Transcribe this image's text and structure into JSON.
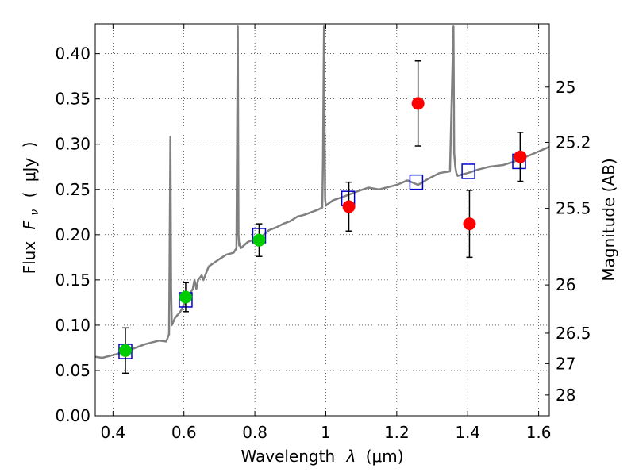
{
  "chart_data": {
    "type": "scatter",
    "xlabel_text": "Wavelength",
    "xlabel_symbol": "λ",
    "xlabel_unit": "(μm)",
    "ylabel_text": "Flux",
    "ylabel_symbol": "F",
    "ylabel_subscript": "ν",
    "ylabel_open": "(",
    "ylabel_unit": "μJy",
    "ylabel_close": ")",
    "y2label": "Magnitude (AB)",
    "xlim": [
      0.35,
      1.63
    ],
    "ylim": [
      0.0,
      0.433
    ],
    "grid": true,
    "x_ticks": [
      {
        "value": 0.4,
        "label": "0.4"
      },
      {
        "value": 0.6,
        "label": "0.6"
      },
      {
        "value": 0.8,
        "label": "0.8"
      },
      {
        "value": 1.0,
        "label": "1"
      },
      {
        "value": 1.2,
        "label": "1.2"
      },
      {
        "value": 1.4,
        "label": "1.4"
      },
      {
        "value": 1.6,
        "label": "1.6"
      }
    ],
    "y_ticks": [
      {
        "value": 0.0,
        "label": "0.00"
      },
      {
        "value": 0.05,
        "label": "0.05"
      },
      {
        "value": 0.1,
        "label": "0.10"
      },
      {
        "value": 0.15,
        "label": "0.15"
      },
      {
        "value": 0.2,
        "label": "0.20"
      },
      {
        "value": 0.25,
        "label": "0.25"
      },
      {
        "value": 0.3,
        "label": "0.30"
      },
      {
        "value": 0.35,
        "label": "0.35"
      },
      {
        "value": 0.4,
        "label": "0.40"
      }
    ],
    "y2_ticks": [
      {
        "value": 25,
        "label": "25"
      },
      {
        "value": 25.2,
        "label": "25.2"
      },
      {
        "value": 25.5,
        "label": "25.5"
      },
      {
        "value": 26,
        "label": "26"
      },
      {
        "value": 26.5,
        "label": "26.5"
      },
      {
        "value": 27,
        "label": "27"
      },
      {
        "value": 28,
        "label": "28"
      }
    ],
    "series": [
      {
        "kind": "spectrum",
        "color": "#808080",
        "x": [
          0.35,
          0.37,
          0.39,
          0.41,
          0.43,
          0.45,
          0.47,
          0.49,
          0.51,
          0.53,
          0.55,
          0.558,
          0.562,
          0.564,
          0.566,
          0.575,
          0.59,
          0.61,
          0.625,
          0.63,
          0.635,
          0.64,
          0.65,
          0.655,
          0.67,
          0.7,
          0.72,
          0.74,
          0.748,
          0.752,
          0.754,
          0.756,
          0.758,
          0.76,
          0.78,
          0.8,
          0.82,
          0.84,
          0.86,
          0.88,
          0.9,
          0.92,
          0.94,
          0.96,
          0.98,
          0.99,
          0.992,
          0.995,
          0.998,
          1.0,
          1.01,
          1.02,
          1.05,
          1.07,
          1.09,
          1.12,
          1.15,
          1.2,
          1.23,
          1.26,
          1.29,
          1.32,
          1.35,
          1.36,
          1.362,
          1.365,
          1.368,
          1.372,
          1.38,
          1.4,
          1.43,
          1.46,
          1.5,
          1.54,
          1.57,
          1.6,
          1.63
        ],
        "y": [
          0.065,
          0.064,
          0.066,
          0.068,
          0.071,
          0.073,
          0.076,
          0.079,
          0.081,
          0.083,
          0.082,
          0.09,
          0.308,
          0.14,
          0.1,
          0.108,
          0.115,
          0.13,
          0.14,
          0.15,
          0.14,
          0.15,
          0.155,
          0.15,
          0.165,
          0.173,
          0.178,
          0.18,
          0.185,
          0.43,
          0.2,
          0.188,
          0.19,
          0.185,
          0.192,
          0.195,
          0.198,
          0.205,
          0.208,
          0.212,
          0.215,
          0.22,
          0.222,
          0.225,
          0.228,
          0.23,
          0.28,
          0.43,
          0.24,
          0.232,
          0.235,
          0.238,
          0.242,
          0.245,
          0.248,
          0.252,
          0.25,
          0.255,
          0.26,
          0.255,
          0.262,
          0.268,
          0.27,
          0.43,
          0.29,
          0.275,
          0.268,
          0.265,
          0.266,
          0.268,
          0.272,
          0.275,
          0.277,
          0.282,
          0.287,
          0.292,
          0.297
        ]
      },
      {
        "kind": "model_squares",
        "color": "#0000cc",
        "points": [
          {
            "x": 0.435,
            "y": 0.071
          },
          {
            "x": 0.605,
            "y": 0.128
          },
          {
            "x": 0.812,
            "y": 0.199
          },
          {
            "x": 1.063,
            "y": 0.24
          },
          {
            "x": 1.255,
            "y": 0.258
          },
          {
            "x": 1.402,
            "y": 0.27
          },
          {
            "x": 1.545,
            "y": 0.281
          }
        ]
      },
      {
        "kind": "observed_green",
        "color": "#00cc00",
        "points": [
          {
            "x": 0.435,
            "y": 0.072,
            "err": 0.025
          },
          {
            "x": 0.605,
            "y": 0.131,
            "err": 0.016
          },
          {
            "x": 0.812,
            "y": 0.194,
            "err": 0.018
          }
        ]
      },
      {
        "kind": "observed_red",
        "color": "#ff0000",
        "points": [
          {
            "x": 1.065,
            "y": 0.231,
            "err": 0.027
          },
          {
            "x": 1.26,
            "y": 0.345,
            "err": 0.047
          },
          {
            "x": 1.405,
            "y": 0.212,
            "err": 0.037
          },
          {
            "x": 1.548,
            "y": 0.286,
            "err": 0.027
          }
        ]
      }
    ]
  }
}
